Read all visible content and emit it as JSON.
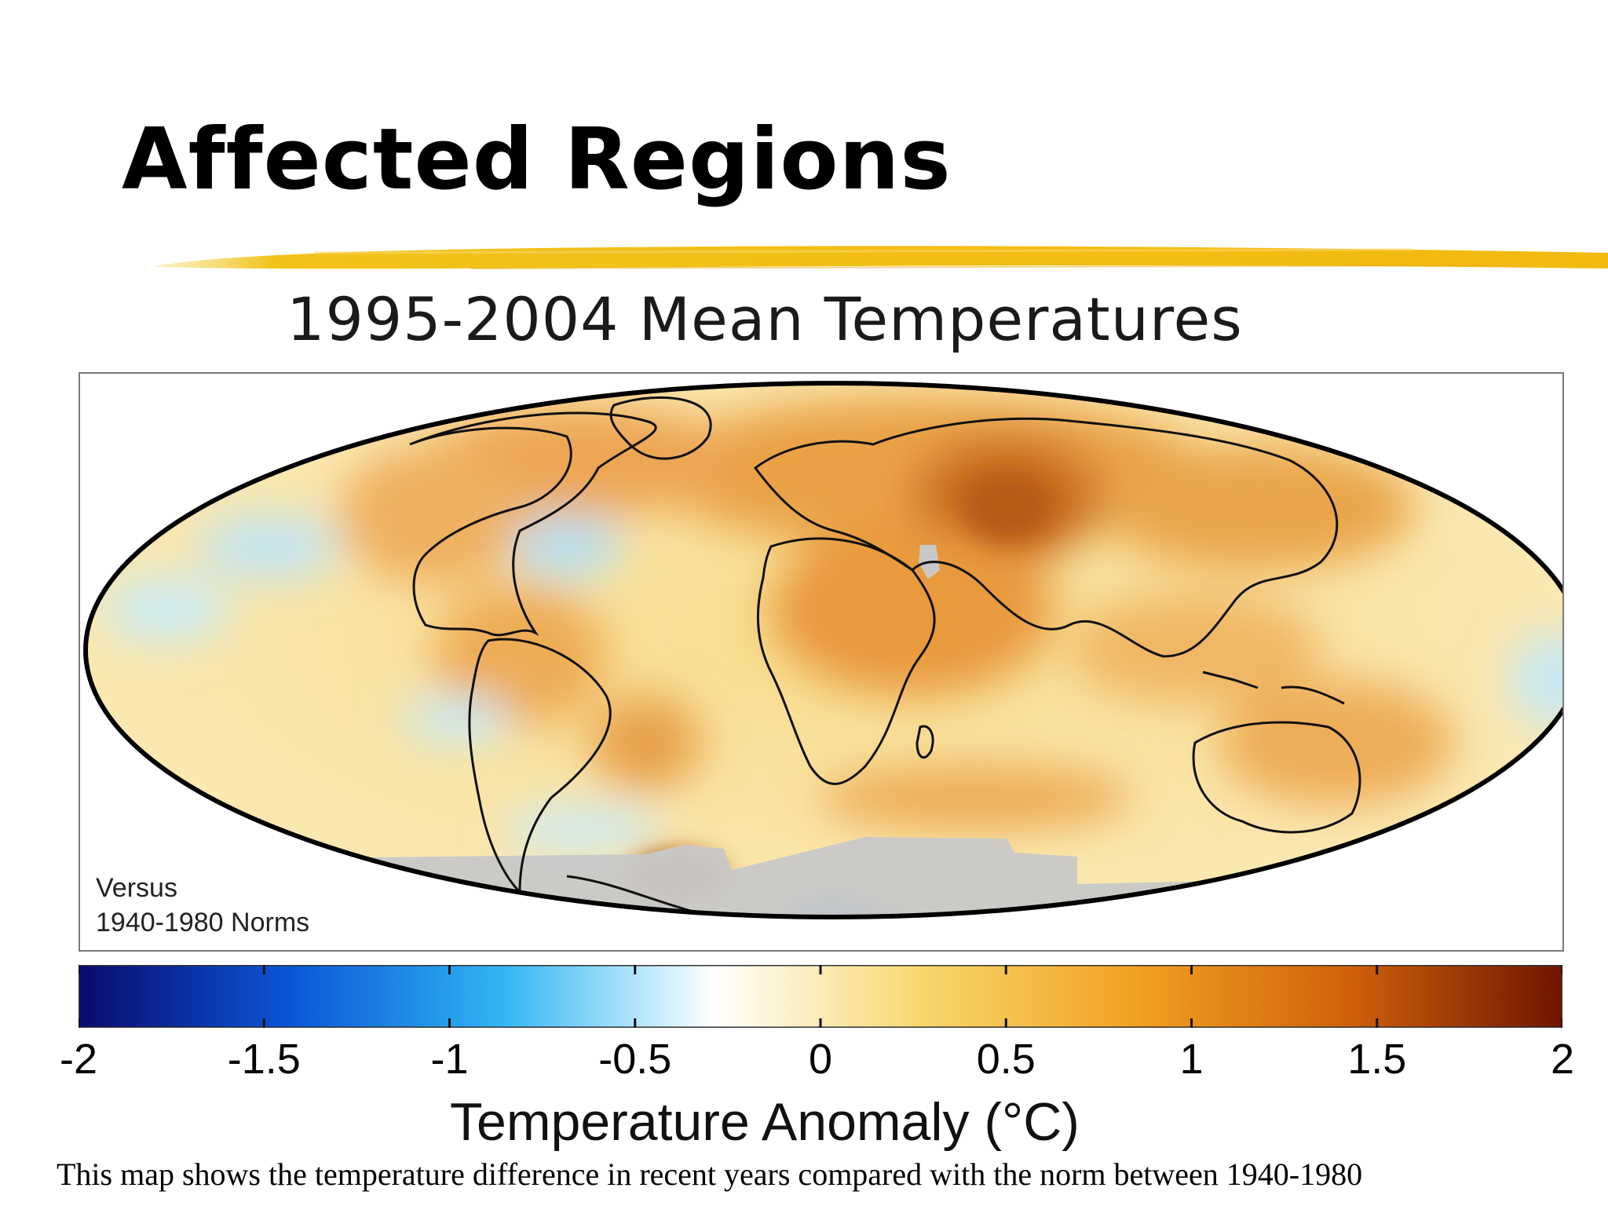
{
  "slide": {
    "title": "Affected Regions",
    "caption": "This map shows the temperature difference in recent years compared with the norm between 1940-1980"
  },
  "map": {
    "title": "1995-2004 Mean Temperatures",
    "projection": "mollweide",
    "note_line1": "Versus",
    "note_line2": "1940-1980 Norms"
  },
  "colorbar": {
    "label": "Temperature Anomaly (°C)",
    "min": -2,
    "max": 2,
    "ticks": [
      "-2",
      "-1.5",
      "-1",
      "-0.5",
      "0",
      "0.5",
      "1",
      "1.5",
      "2"
    ],
    "stops": [
      "#0a0a6e",
      "#0a56d8",
      "#31b6f3",
      "#ffffff",
      "#f7d66b",
      "#f2a020",
      "#d0600a",
      "#6e1500"
    ]
  },
  "colors": {
    "accent_brush": "#f2c21a",
    "missing_data": "#c8c8c8"
  }
}
